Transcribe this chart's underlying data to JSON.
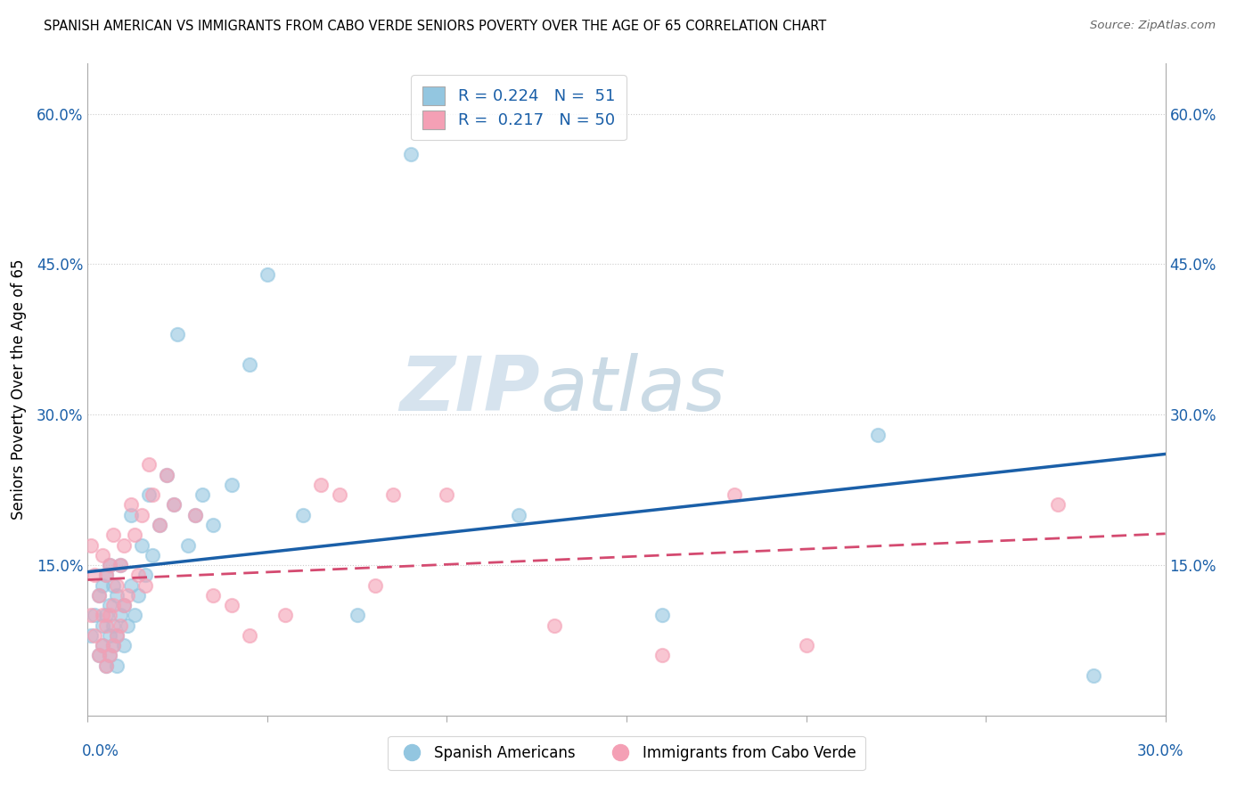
{
  "title": "SPANISH AMERICAN VS IMMIGRANTS FROM CABO VERDE SENIORS POVERTY OVER THE AGE OF 65 CORRELATION CHART",
  "source": "Source: ZipAtlas.com",
  "ylabel": "Seniors Poverty Over the Age of 65",
  "xlim": [
    0.0,
    0.3
  ],
  "ylim": [
    0.0,
    0.65
  ],
  "blue_color": "#93c6e0",
  "pink_color": "#f4a0b5",
  "blue_line_color": "#1a5fa8",
  "pink_line_color": "#d44a70",
  "watermark_zip": "ZIP",
  "watermark_atlas": "atlas",
  "sa_x": [
    0.001,
    0.002,
    0.003,
    0.003,
    0.004,
    0.004,
    0.004,
    0.005,
    0.005,
    0.005,
    0.006,
    0.006,
    0.006,
    0.006,
    0.007,
    0.007,
    0.007,
    0.008,
    0.008,
    0.008,
    0.009,
    0.009,
    0.01,
    0.01,
    0.011,
    0.012,
    0.012,
    0.013,
    0.014,
    0.015,
    0.016,
    0.017,
    0.018,
    0.02,
    0.022,
    0.024,
    0.025,
    0.028,
    0.03,
    0.032,
    0.035,
    0.04,
    0.045,
    0.05,
    0.06,
    0.075,
    0.09,
    0.12,
    0.16,
    0.22,
    0.28
  ],
  "sa_y": [
    0.08,
    0.1,
    0.06,
    0.12,
    0.07,
    0.09,
    0.13,
    0.05,
    0.1,
    0.14,
    0.06,
    0.08,
    0.11,
    0.15,
    0.07,
    0.09,
    0.13,
    0.05,
    0.08,
    0.12,
    0.1,
    0.15,
    0.07,
    0.11,
    0.09,
    0.13,
    0.2,
    0.1,
    0.12,
    0.17,
    0.14,
    0.22,
    0.16,
    0.19,
    0.24,
    0.21,
    0.38,
    0.17,
    0.2,
    0.22,
    0.19,
    0.23,
    0.35,
    0.44,
    0.2,
    0.1,
    0.56,
    0.2,
    0.1,
    0.28,
    0.04
  ],
  "cv_x": [
    0.001,
    0.001,
    0.002,
    0.002,
    0.003,
    0.003,
    0.004,
    0.004,
    0.004,
    0.005,
    0.005,
    0.005,
    0.006,
    0.006,
    0.006,
    0.007,
    0.007,
    0.007,
    0.008,
    0.008,
    0.009,
    0.009,
    0.01,
    0.01,
    0.011,
    0.012,
    0.013,
    0.014,
    0.015,
    0.016,
    0.017,
    0.018,
    0.02,
    0.022,
    0.024,
    0.03,
    0.035,
    0.04,
    0.045,
    0.055,
    0.065,
    0.07,
    0.08,
    0.085,
    0.1,
    0.13,
    0.16,
    0.18,
    0.2,
    0.27
  ],
  "cv_y": [
    0.1,
    0.17,
    0.08,
    0.14,
    0.06,
    0.12,
    0.07,
    0.1,
    0.16,
    0.05,
    0.09,
    0.14,
    0.06,
    0.1,
    0.15,
    0.07,
    0.11,
    0.18,
    0.08,
    0.13,
    0.09,
    0.15,
    0.11,
    0.17,
    0.12,
    0.21,
    0.18,
    0.14,
    0.2,
    0.13,
    0.25,
    0.22,
    0.19,
    0.24,
    0.21,
    0.2,
    0.12,
    0.11,
    0.08,
    0.1,
    0.23,
    0.22,
    0.13,
    0.22,
    0.22,
    0.09,
    0.06,
    0.22,
    0.07,
    0.21
  ]
}
